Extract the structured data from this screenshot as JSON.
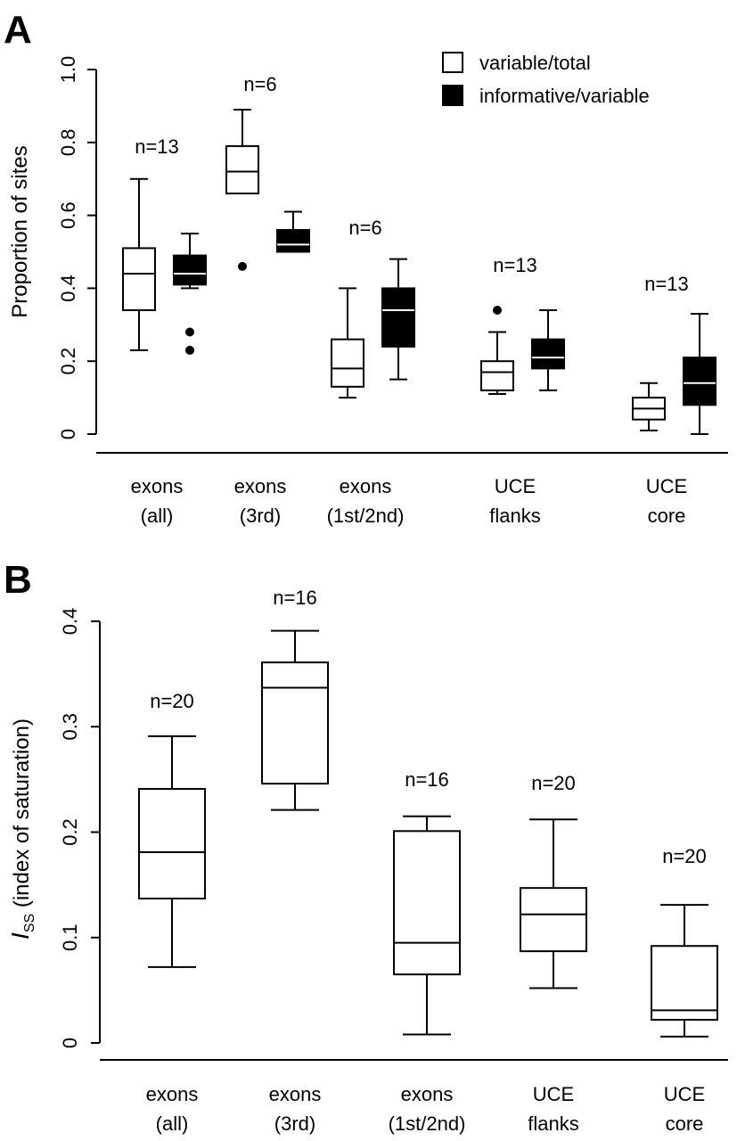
{
  "chart_data": [
    {
      "panel": "A",
      "type": "boxplot",
      "ylabel": "Proportion of sites",
      "ylim": [
        0,
        1.0
      ],
      "yticks": [
        "0",
        "0.2",
        "0.4",
        "0.6",
        "0.8",
        "1.0"
      ],
      "ytick_values": [
        0,
        0.2,
        0.4,
        0.6,
        0.8,
        1.0
      ],
      "categories": [
        [
          "exons",
          "(all)"
        ],
        [
          "exons",
          "(3rd)"
        ],
        [
          "exons",
          "(1st/2nd)"
        ],
        [
          "UCE",
          "flanks"
        ],
        [
          "UCE",
          "core"
        ]
      ],
      "n_labels": [
        "n=13",
        "n=6",
        "n=6",
        "n=13",
        "n=13"
      ],
      "legend": [
        {
          "label": "variable/total",
          "fill": "#ffffff"
        },
        {
          "label": "informative/variable",
          "fill": "#000000"
        }
      ],
      "series": [
        {
          "name": "variable/total",
          "fill": "#ffffff",
          "boxes": [
            {
              "whisker_low": 0.23,
              "q1": 0.34,
              "median": 0.44,
              "q3": 0.51,
              "whisker_high": 0.7,
              "outliers": []
            },
            {
              "whisker_low": 0.66,
              "q1": 0.66,
              "median": 0.72,
              "q3": 0.79,
              "whisker_high": 0.89,
              "outliers": [
                0.46
              ]
            },
            {
              "whisker_low": 0.1,
              "q1": 0.13,
              "median": 0.18,
              "q3": 0.26,
              "whisker_high": 0.4,
              "outliers": []
            },
            {
              "whisker_low": 0.11,
              "q1": 0.12,
              "median": 0.17,
              "q3": 0.2,
              "whisker_high": 0.28,
              "outliers": [
                0.34
              ]
            },
            {
              "whisker_low": 0.01,
              "q1": 0.04,
              "median": 0.07,
              "q3": 0.1,
              "whisker_high": 0.14,
              "outliers": []
            }
          ]
        },
        {
          "name": "informative/variable",
          "fill": "#000000",
          "boxes": [
            {
              "whisker_low": 0.4,
              "q1": 0.41,
              "median": 0.44,
              "q3": 0.49,
              "whisker_high": 0.55,
              "outliers": [
                0.28,
                0.23
              ]
            },
            {
              "whisker_low": 0.5,
              "q1": 0.5,
              "median": 0.52,
              "q3": 0.56,
              "whisker_high": 0.61,
              "outliers": []
            },
            {
              "whisker_low": 0.15,
              "q1": 0.24,
              "median": 0.34,
              "q3": 0.4,
              "whisker_high": 0.48,
              "outliers": []
            },
            {
              "whisker_low": 0.12,
              "q1": 0.18,
              "median": 0.21,
              "q3": 0.26,
              "whisker_high": 0.34,
              "outliers": []
            },
            {
              "whisker_low": 0.0,
              "q1": 0.08,
              "median": 0.14,
              "q3": 0.21,
              "whisker_high": 0.33,
              "outliers": []
            }
          ]
        }
      ]
    },
    {
      "panel": "B",
      "type": "boxplot",
      "ylabel_main": "I",
      "ylabel_sub": "SS",
      "ylabel_rest": " (index of saturation)",
      "ylim": [
        0,
        0.4
      ],
      "yticks": [
        "0",
        "0.1",
        "0.2",
        "0.3",
        "0.4"
      ],
      "ytick_values": [
        0,
        0.1,
        0.2,
        0.3,
        0.4
      ],
      "categories": [
        [
          "exons",
          "(all)"
        ],
        [
          "exons",
          "(3rd)"
        ],
        [
          "exons",
          "(1st/2nd)"
        ],
        [
          "UCE",
          "flanks"
        ],
        [
          "UCE",
          "core"
        ]
      ],
      "n_labels": [
        "n=20",
        "n=16",
        "n=16",
        "n=20",
        "n=20"
      ],
      "series": [
        {
          "name": "",
          "fill": "#ffffff",
          "boxes": [
            {
              "whisker_low": 0.072,
              "q1": 0.137,
              "median": 0.181,
              "q3": 0.241,
              "whisker_high": 0.291,
              "outliers": []
            },
            {
              "whisker_low": 0.221,
              "q1": 0.246,
              "median": 0.337,
              "q3": 0.361,
              "whisker_high": 0.391,
              "outliers": []
            },
            {
              "whisker_low": 0.008,
              "q1": 0.065,
              "median": 0.095,
              "q3": 0.201,
              "whisker_high": 0.215,
              "outliers": []
            },
            {
              "whisker_low": 0.052,
              "q1": 0.087,
              "median": 0.122,
              "q3": 0.147,
              "whisker_high": 0.212,
              "outliers": []
            },
            {
              "whisker_low": 0.006,
              "q1": 0.022,
              "median": 0.031,
              "q3": 0.092,
              "whisker_high": 0.131,
              "outliers": []
            }
          ]
        }
      ]
    }
  ]
}
